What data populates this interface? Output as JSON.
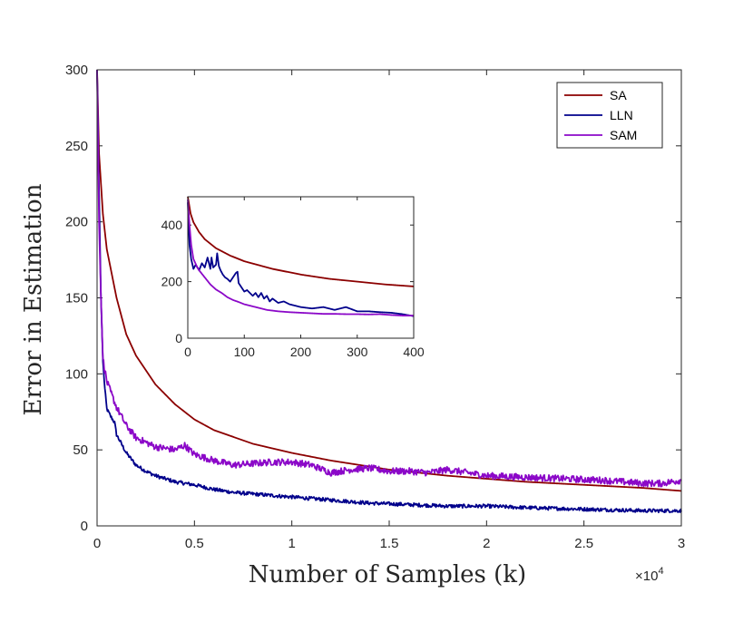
{
  "chart_data": [
    {
      "type": "line",
      "title": "",
      "xlabel": "Number of Samples (k)",
      "ylabel": "Error in Estimation",
      "x_exponent_label": "×10",
      "x_exponent_power": "4",
      "xlim": [
        0,
        30000
      ],
      "ylim": [
        0,
        300
      ],
      "xticks": [
        0,
        5000,
        10000,
        15000,
        20000,
        25000,
        30000
      ],
      "xtick_labels": [
        "0",
        "0.5",
        "1",
        "1.5",
        "2",
        "2.5",
        "3"
      ],
      "yticks": [
        0,
        50,
        100,
        150,
        200,
        250,
        300
      ],
      "ytick_labels": [
        "0",
        "50",
        "100",
        "150",
        "200",
        "250",
        "300"
      ],
      "legend": {
        "position": "top-right",
        "entries": [
          "SA",
          "LLN",
          "SAM"
        ]
      },
      "series": [
        {
          "name": "SA",
          "color": "#8B0000",
          "x": [
            0,
            100,
            300,
            500,
            1000,
            1500,
            2000,
            3000,
            4000,
            5000,
            6000,
            8000,
            10000,
            12000,
            15000,
            18000,
            20000,
            22000,
            25000,
            28000,
            30000
          ],
          "y": [
            300,
            245,
            205,
            182,
            150,
            126,
            112,
            93,
            80,
            70,
            63,
            54,
            48,
            43,
            37,
            33,
            31,
            29,
            27,
            25,
            23
          ]
        },
        {
          "name": "LLN",
          "color": "#00008B",
          "x": [
            0,
            100,
            200,
            300,
            400,
            500,
            700,
            900,
            1000,
            1500,
            2000,
            2500,
            3000,
            4000,
            5000,
            6000,
            7000,
            8000,
            9000,
            10000,
            12000,
            14000,
            16000,
            18000,
            20000,
            22000,
            25000,
            28000,
            30000
          ],
          "y": [
            300,
            220,
            150,
            108,
            90,
            77,
            72,
            68,
            60,
            48,
            40,
            36,
            33,
            29,
            27,
            24,
            22,
            21,
            20,
            19,
            17,
            15,
            14,
            13,
            13,
            12,
            11,
            10,
            10
          ],
          "noise": 1.2
        },
        {
          "name": "SAM",
          "color": "#8B08C8",
          "x": [
            0,
            100,
            200,
            300,
            500,
            700,
            1000,
            1500,
            2000,
            3000,
            4000,
            4500,
            5000,
            6000,
            7000,
            8000,
            9000,
            10000,
            11000,
            12000,
            13000,
            14000,
            15000,
            16000,
            17000,
            18000,
            20000,
            22000,
            24000,
            26000,
            28000,
            29000,
            30000
          ],
          "y": [
            300,
            200,
            150,
            110,
            95,
            88,
            78,
            66,
            58,
            52,
            50,
            53,
            47,
            43,
            40,
            41,
            42,
            42,
            40,
            35,
            37,
            38,
            36,
            36,
            35,
            37,
            33,
            32,
            31,
            30,
            28,
            28,
            30
          ],
          "noise": 2.2
        }
      ]
    },
    {
      "type": "line",
      "title": "",
      "xlabel": "",
      "ylabel": "",
      "xlim": [
        0,
        400
      ],
      "ylim": [
        0,
        500
      ],
      "xticks": [
        0,
        100,
        200,
        300,
        400
      ],
      "xtick_labels": [
        "0",
        "100",
        "200",
        "300",
        "400"
      ],
      "yticks": [
        0,
        200,
        400
      ],
      "ytick_labels": [
        "0",
        "200",
        "400"
      ],
      "series": [
        {
          "name": "SA",
          "color": "#8B0000",
          "x": [
            0,
            5,
            10,
            20,
            30,
            50,
            75,
            100,
            150,
            200,
            250,
            300,
            350,
            400
          ],
          "y": [
            500,
            440,
            410,
            375,
            350,
            318,
            292,
            272,
            245,
            225,
            210,
            200,
            190,
            183
          ]
        },
        {
          "name": "LLN",
          "color": "#00008B",
          "x": [
            0,
            3,
            6,
            10,
            14,
            20,
            25,
            30,
            35,
            40,
            42,
            45,
            50,
            52,
            55,
            58,
            62,
            66,
            70,
            75,
            80,
            85,
            88,
            90,
            95,
            100,
            105,
            110,
            115,
            120,
            125,
            130,
            135,
            140,
            145,
            150,
            160,
            170,
            180,
            190,
            200,
            220,
            240,
            260,
            280,
            300,
            320,
            340,
            360,
            380,
            400
          ],
          "y": [
            480,
            330,
            280,
            245,
            260,
            240,
            265,
            250,
            285,
            245,
            285,
            250,
            260,
            300,
            255,
            240,
            225,
            215,
            210,
            200,
            215,
            230,
            235,
            195,
            180,
            165,
            170,
            160,
            150,
            160,
            145,
            160,
            140,
            150,
            130,
            140,
            125,
            130,
            120,
            115,
            110,
            105,
            110,
            100,
            110,
            95,
            95,
            92,
            90,
            85,
            78
          ]
        },
        {
          "name": "SAM",
          "color": "#8B08C8",
          "x": [
            0,
            3,
            6,
            10,
            15,
            20,
            30,
            40,
            50,
            60,
            70,
            80,
            90,
            100,
            120,
            140,
            160,
            180,
            200,
            220,
            240,
            260,
            280,
            300,
            320,
            340,
            360,
            380,
            400
          ],
          "y": [
            490,
            400,
            330,
            280,
            258,
            240,
            215,
            190,
            172,
            160,
            145,
            135,
            128,
            120,
            110,
            100,
            95,
            92,
            90,
            88,
            86,
            86,
            85,
            85,
            84,
            85,
            82,
            80,
            80
          ]
        }
      ]
    }
  ]
}
